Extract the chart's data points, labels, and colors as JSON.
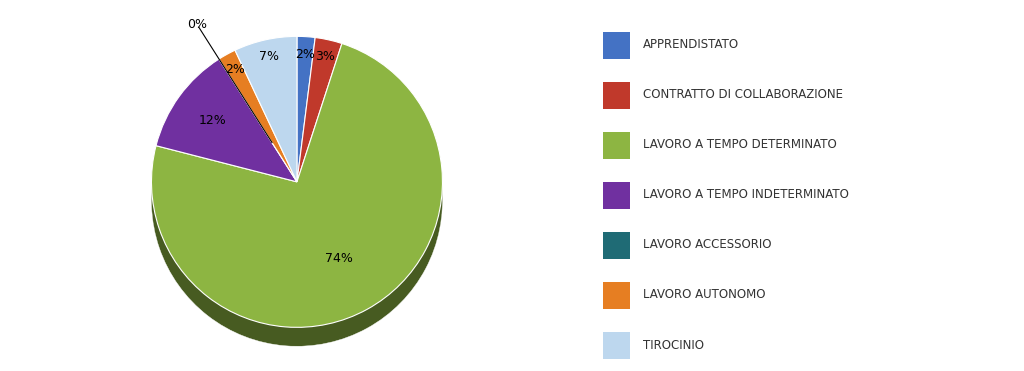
{
  "labels": [
    "APPRENDISTATO",
    "CONTRATTO DI COLLABORAZIONE",
    "LAVORO A TEMPO DETERMINATO",
    "LAVORO A TEMPO INDETERMINATO",
    "LAVORO ACCESSORIO",
    "LAVORO AUTONOMO",
    "TIROCINIO"
  ],
  "values": [
    2,
    3,
    74,
    12,
    0,
    2,
    7
  ],
  "colors": [
    "#4472C4",
    "#C0392B",
    "#8DB542",
    "#7030A0",
    "#1F6B75",
    "#E67E22",
    "#BDD7EE"
  ],
  "background_color": "#FFFFFF",
  "legend_fontsize": 8.5,
  "label_fontsize": 9,
  "pct_display": [
    "2%",
    "3%",
    "74%",
    "12%",
    "0%",
    "2%",
    "7%"
  ]
}
